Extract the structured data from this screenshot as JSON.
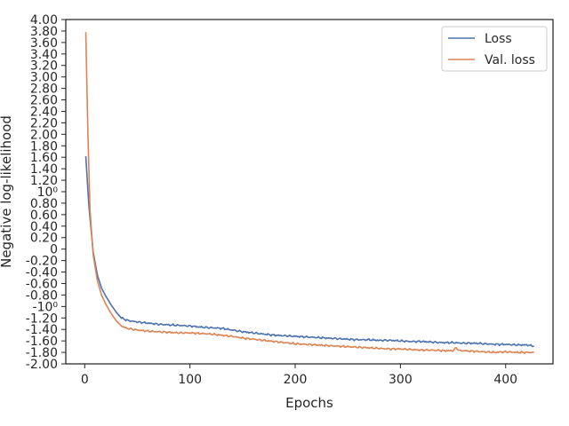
{
  "chart_data": {
    "type": "line",
    "title": "",
    "xlabel": "Epochs",
    "ylabel": "Negative log-likelihood",
    "xlim": [
      -18,
      445
    ],
    "ylim": [
      -2.0,
      4.0
    ],
    "x_ticks": [
      0,
      100,
      200,
      300,
      400
    ],
    "y_ticks": [
      {
        "value": -2.0,
        "label": "-2.00"
      },
      {
        "value": -1.8,
        "label": "-1.80"
      },
      {
        "value": -1.6,
        "label": "-1.60"
      },
      {
        "value": -1.4,
        "label": "-1.40"
      },
      {
        "value": -1.2,
        "label": "-1.20"
      },
      {
        "value": -1.0,
        "label": "-10⁰"
      },
      {
        "value": -0.8,
        "label": "-0.80"
      },
      {
        "value": -0.6,
        "label": "-0.60"
      },
      {
        "value": -0.4,
        "label": "-0.40"
      },
      {
        "value": -0.2,
        "label": "-0.20"
      },
      {
        "value": 0.0,
        "label": "0"
      },
      {
        "value": 0.2,
        "label": "0.20"
      },
      {
        "value": 0.4,
        "label": "0.40"
      },
      {
        "value": 0.6,
        "label": "0.60"
      },
      {
        "value": 0.8,
        "label": "0.80"
      },
      {
        "value": 1.0,
        "label": "10⁰"
      },
      {
        "value": 1.2,
        "label": "1.20"
      },
      {
        "value": 1.4,
        "label": "1.40"
      },
      {
        "value": 1.6,
        "label": "1.60"
      },
      {
        "value": 1.8,
        "label": "1.80"
      },
      {
        "value": 2.0,
        "label": "2.00"
      },
      {
        "value": 2.2,
        "label": "2.20"
      },
      {
        "value": 2.4,
        "label": "2.40"
      },
      {
        "value": 2.6,
        "label": "2.60"
      },
      {
        "value": 2.8,
        "label": "2.80"
      },
      {
        "value": 3.0,
        "label": "3.00"
      },
      {
        "value": 3.2,
        "label": "3.20"
      },
      {
        "value": 3.4,
        "label": "3.40"
      },
      {
        "value": 3.6,
        "label": "3.60"
      },
      {
        "value": 3.8,
        "label": "3.80"
      },
      {
        "value": 4.0,
        "label": "4.00"
      }
    ],
    "grid": false,
    "legend_position": "top-right",
    "series": [
      {
        "name": "Loss",
        "color": "#4c72b0",
        "x": [
          1,
          4,
          8,
          12,
          16,
          20,
          25,
          30,
          35,
          40,
          50,
          60,
          70,
          80,
          90,
          100,
          110,
          120,
          130,
          140,
          150,
          160,
          170,
          180,
          190,
          200,
          210,
          220,
          230,
          240,
          250,
          260,
          270,
          280,
          290,
          300,
          310,
          320,
          330,
          340,
          350,
          360,
          370,
          380,
          390,
          400,
          410,
          420,
          427
        ],
        "y": [
          1.62,
          0.75,
          -0.05,
          -0.45,
          -0.68,
          -0.82,
          -0.97,
          -1.1,
          -1.2,
          -1.24,
          -1.27,
          -1.29,
          -1.31,
          -1.32,
          -1.33,
          -1.34,
          -1.36,
          -1.37,
          -1.38,
          -1.41,
          -1.44,
          -1.46,
          -1.48,
          -1.5,
          -1.51,
          -1.52,
          -1.53,
          -1.54,
          -1.55,
          -1.56,
          -1.57,
          -1.58,
          -1.58,
          -1.59,
          -1.59,
          -1.6,
          -1.61,
          -1.61,
          -1.62,
          -1.63,
          -1.63,
          -1.64,
          -1.64,
          -1.65,
          -1.66,
          -1.66,
          -1.67,
          -1.67,
          -1.69
        ]
      },
      {
        "name": "Val. loss",
        "color": "#dd8452",
        "x": [
          1,
          3,
          5,
          8,
          12,
          16,
          20,
          25,
          30,
          35,
          40,
          50,
          60,
          70,
          80,
          90,
          100,
          110,
          120,
          130,
          140,
          150,
          160,
          170,
          180,
          190,
          200,
          210,
          220,
          230,
          240,
          250,
          260,
          270,
          280,
          290,
          300,
          310,
          320,
          330,
          340,
          350,
          353,
          356,
          360,
          370,
          380,
          390,
          400,
          410,
          420,
          427
        ],
        "y": [
          3.78,
          2.0,
          0.7,
          -0.1,
          -0.55,
          -0.8,
          -0.96,
          -1.12,
          -1.25,
          -1.34,
          -1.38,
          -1.41,
          -1.43,
          -1.44,
          -1.45,
          -1.46,
          -1.46,
          -1.47,
          -1.48,
          -1.5,
          -1.52,
          -1.55,
          -1.57,
          -1.59,
          -1.61,
          -1.63,
          -1.65,
          -1.66,
          -1.67,
          -1.68,
          -1.69,
          -1.7,
          -1.71,
          -1.72,
          -1.73,
          -1.74,
          -1.74,
          -1.75,
          -1.76,
          -1.76,
          -1.77,
          -1.77,
          -1.72,
          -1.77,
          -1.77,
          -1.78,
          -1.79,
          -1.8,
          -1.79,
          -1.8,
          -1.8,
          -1.8
        ]
      }
    ]
  }
}
